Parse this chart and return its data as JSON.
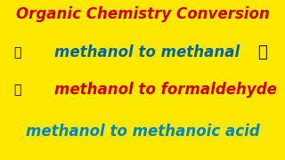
{
  "background_color": "#FFE800",
  "title": "Organic Chemistry Conversion",
  "title_color": "#CC0000",
  "title_fontsize": 13,
  "line1_main": "methanol to methanal",
  "line1_color": "#006699",
  "line2_main": "methanol to formaldehyde",
  "line2_color": "#CC0000",
  "line3_main": "methanol to methanoic acid",
  "line3_color": "#0088BB"
}
